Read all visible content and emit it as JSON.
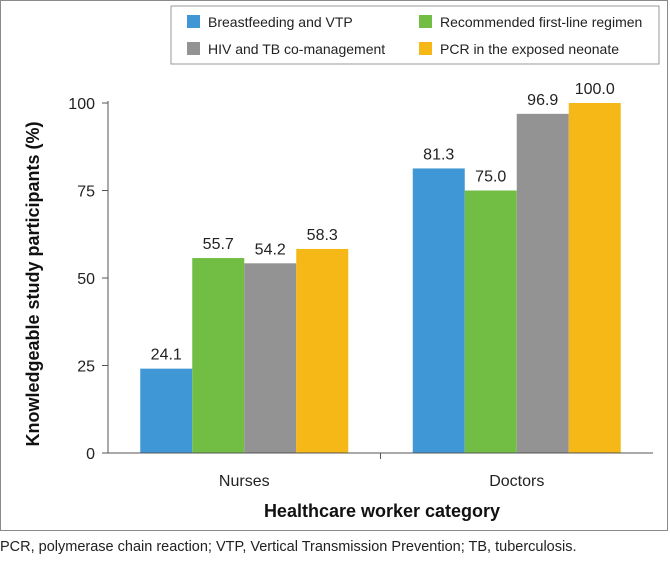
{
  "chart_data": {
    "type": "bar",
    "categories": [
      "Nurses",
      "Doctors"
    ],
    "series": [
      {
        "name": "Breastfeeding and VTP",
        "color": "#3f97d6",
        "values": [
          24.1,
          81.3
        ],
        "labels": [
          "24.1",
          "81.3"
        ]
      },
      {
        "name": "Recommended first-line regimen",
        "color": "#72bd44",
        "values": [
          55.7,
          75.0
        ],
        "labels": [
          "55.7",
          "75.0"
        ]
      },
      {
        "name": "HIV and TB co-management",
        "color": "#939393",
        "values": [
          54.2,
          96.9
        ],
        "labels": [
          "54.2",
          "96.9"
        ]
      },
      {
        "name": "PCR in the exposed neonate",
        "color": "#f6b817",
        "values": [
          58.3,
          100.0
        ],
        "labels": [
          "58.3",
          "100.0"
        ]
      }
    ],
    "yticks": [
      0,
      25,
      50,
      75,
      100
    ],
    "ylim": [
      0,
      100
    ],
    "xlabel": "Healthcare worker category",
    "ylabel": "Knowledgeable study participants (%)",
    "grid": false,
    "legend_position": "top-right"
  },
  "footnote": "PCR, polymerase chain reaction; VTP, Vertical Transmission Prevention; TB, tuberculosis."
}
